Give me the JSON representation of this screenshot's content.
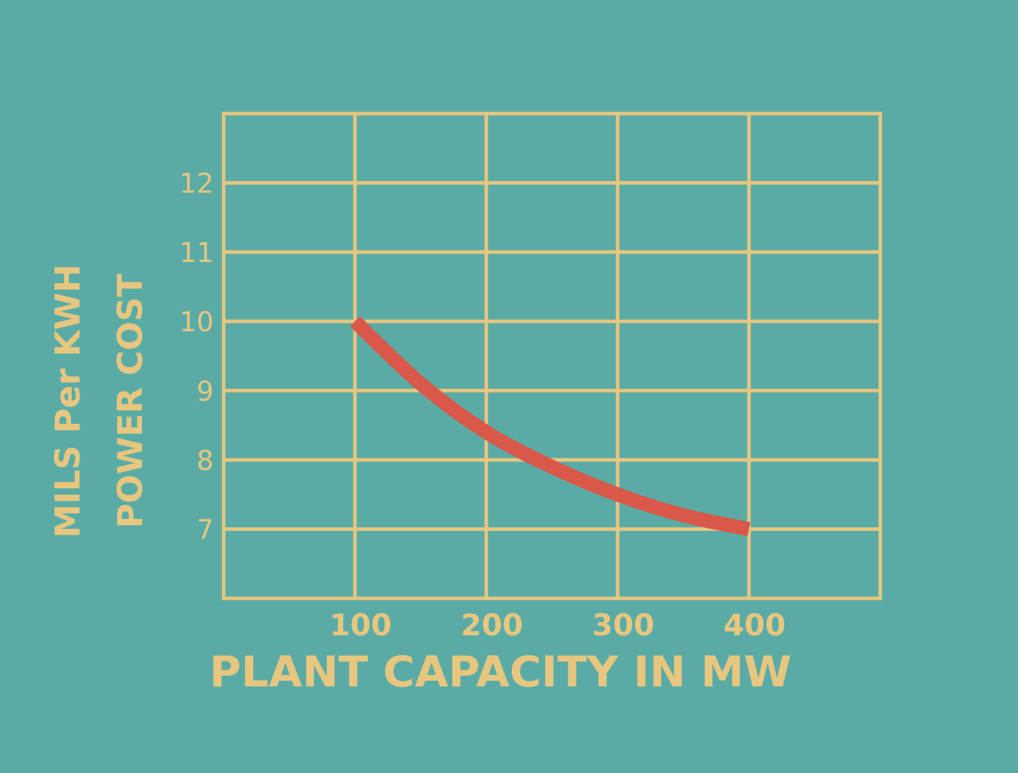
{
  "chart_data": {
    "type": "line",
    "title": "",
    "xlabel": "PLANT CAPACITY IN MW",
    "ylabel_line1": "MILS Per KWH",
    "ylabel_line2": "POWER COST",
    "x_ticks": [
      100,
      200,
      300,
      400
    ],
    "y_ticks": [
      7,
      8,
      9,
      10,
      11,
      12
    ],
    "xlim": [
      0,
      500
    ],
    "ylim": [
      6,
      13
    ],
    "grid": true,
    "series": [
      {
        "x": [
          100,
          150,
          200,
          250,
          300,
          350,
          400
        ],
        "y": [
          10.0,
          9.1,
          8.4,
          7.9,
          7.5,
          7.2,
          7.0
        ]
      }
    ],
    "colors": {
      "background": "#5aaba6",
      "grid": "#e7c67f",
      "text": "#e7c67f",
      "curve": "#d9584a"
    }
  }
}
